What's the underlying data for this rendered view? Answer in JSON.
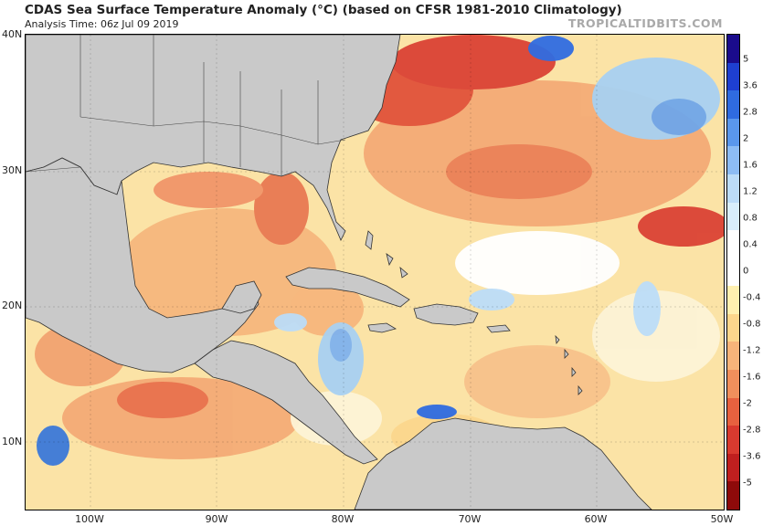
{
  "header": {
    "title": "CDAS Sea Surface Temperature Anomaly (°C) (based on CFSR 1981-2010 Climatology)",
    "analysis_time": "Analysis Time: 06z Jul 09 2019",
    "brand": "TROPICALTIDBITS.COM"
  },
  "axes": {
    "lat_labels": [
      "40N",
      "30N",
      "20N",
      "10N"
    ],
    "lon_labels": [
      "100W",
      "90W",
      "80W",
      "70W",
      "60W",
      "50W"
    ]
  },
  "colorbar": {
    "labels": [
      "5",
      "3.6",
      "2.8",
      "2",
      "1.6",
      "1.2",
      "0.8",
      "0.4",
      "0",
      "-0.4",
      "-0.8",
      "-1.2",
      "-1.6",
      "-2",
      "-2.8",
      "-3.6",
      "-5"
    ],
    "colors": [
      "#1a0b8c",
      "#1e3fd1",
      "#2f6be0",
      "#5a97ec",
      "#8dbcf4",
      "#bcdcf8",
      "#d9eefb",
      "#ffffff",
      "#ffffff",
      "#fff0b0",
      "#fcd68c",
      "#f7b47a",
      "#f08f5c",
      "#e7613f",
      "#d93a2f",
      "#c01f1f",
      "#8e0a0a"
    ]
  },
  "map_colors": {
    "land": "#c9c9c9",
    "ocean_warm": "#f7c58a",
    "ocean_hot": "#e85a3f",
    "ocean_neutral": "#ffffff",
    "ocean_cool": "#a8d1f2",
    "ocean_cold": "#3b78d8"
  }
}
